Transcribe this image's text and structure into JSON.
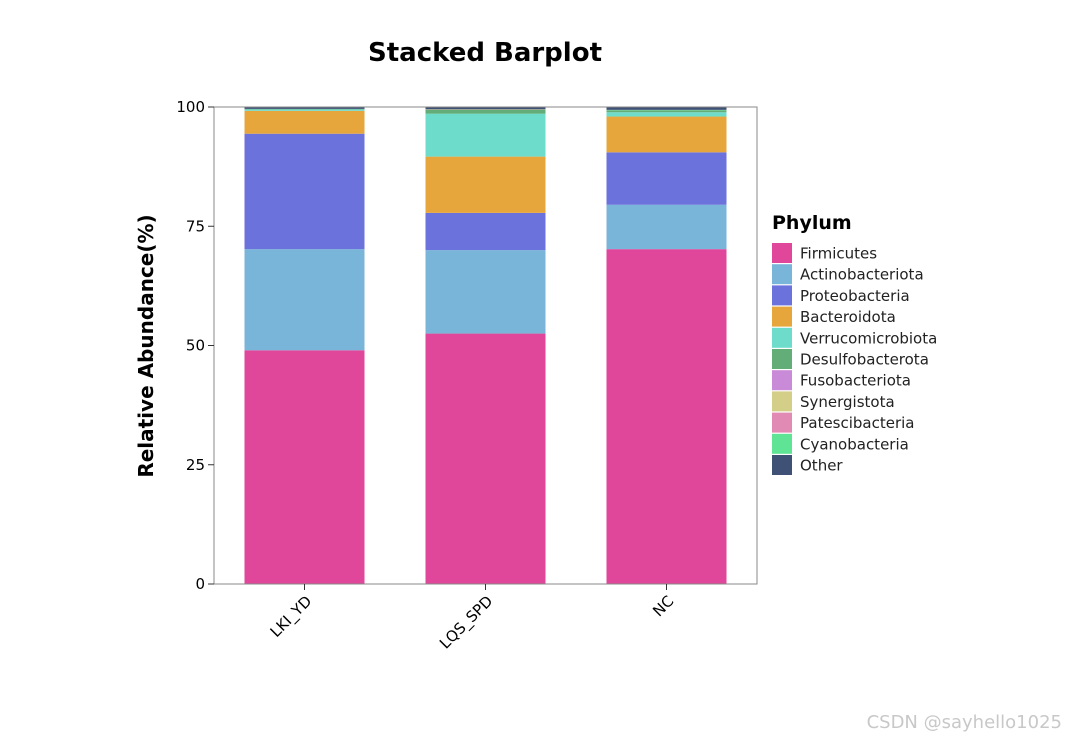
{
  "chart_data": {
    "type": "bar",
    "stacked": true,
    "title": "Stacked Barplot",
    "xlabel": "",
    "ylabel": "Relative Abundance(%)",
    "ylim": [
      0,
      100
    ],
    "yticks": [
      0,
      25,
      50,
      75,
      100
    ],
    "categories": [
      "LKI_YD",
      "LQS_SPD",
      "NC"
    ],
    "legend_title": "Phylum",
    "legend_position": "right",
    "grid": false,
    "series": [
      {
        "name": "Firmicutes",
        "color": "#e0469a",
        "values": [
          49.0,
          52.5,
          70.2
        ]
      },
      {
        "name": "Actinobacteriota",
        "color": "#79b4d9",
        "values": [
          21.2,
          17.5,
          9.3
        ]
      },
      {
        "name": "Proteobacteria",
        "color": "#6b72dc",
        "values": [
          24.2,
          7.8,
          11.0
        ]
      },
      {
        "name": "Bacteroidota",
        "color": "#e6a63c",
        "values": [
          4.8,
          11.8,
          7.5
        ]
      },
      {
        "name": "Verrucomicrobiota",
        "color": "#6ddccb",
        "values": [
          0.3,
          9.0,
          0.9
        ]
      },
      {
        "name": "Desulfobacterota",
        "color": "#62ad78",
        "values": [
          0.1,
          0.8,
          0.4
        ]
      },
      {
        "name": "Fusobacteriota",
        "color": "#c98ad8",
        "values": [
          0.0,
          0.0,
          0.0
        ]
      },
      {
        "name": "Synergistota",
        "color": "#d4cf88",
        "values": [
          0.0,
          0.1,
          0.0
        ]
      },
      {
        "name": "Patescibacteria",
        "color": "#e18bb4",
        "values": [
          0.0,
          0.0,
          0.0
        ]
      },
      {
        "name": "Cyanobacteria",
        "color": "#5fe394",
        "values": [
          0.0,
          0.0,
          0.1
        ]
      },
      {
        "name": "Other",
        "color": "#3f5276",
        "values": [
          0.4,
          0.5,
          0.6
        ]
      }
    ]
  },
  "watermark": "CSDN @sayhello1025"
}
